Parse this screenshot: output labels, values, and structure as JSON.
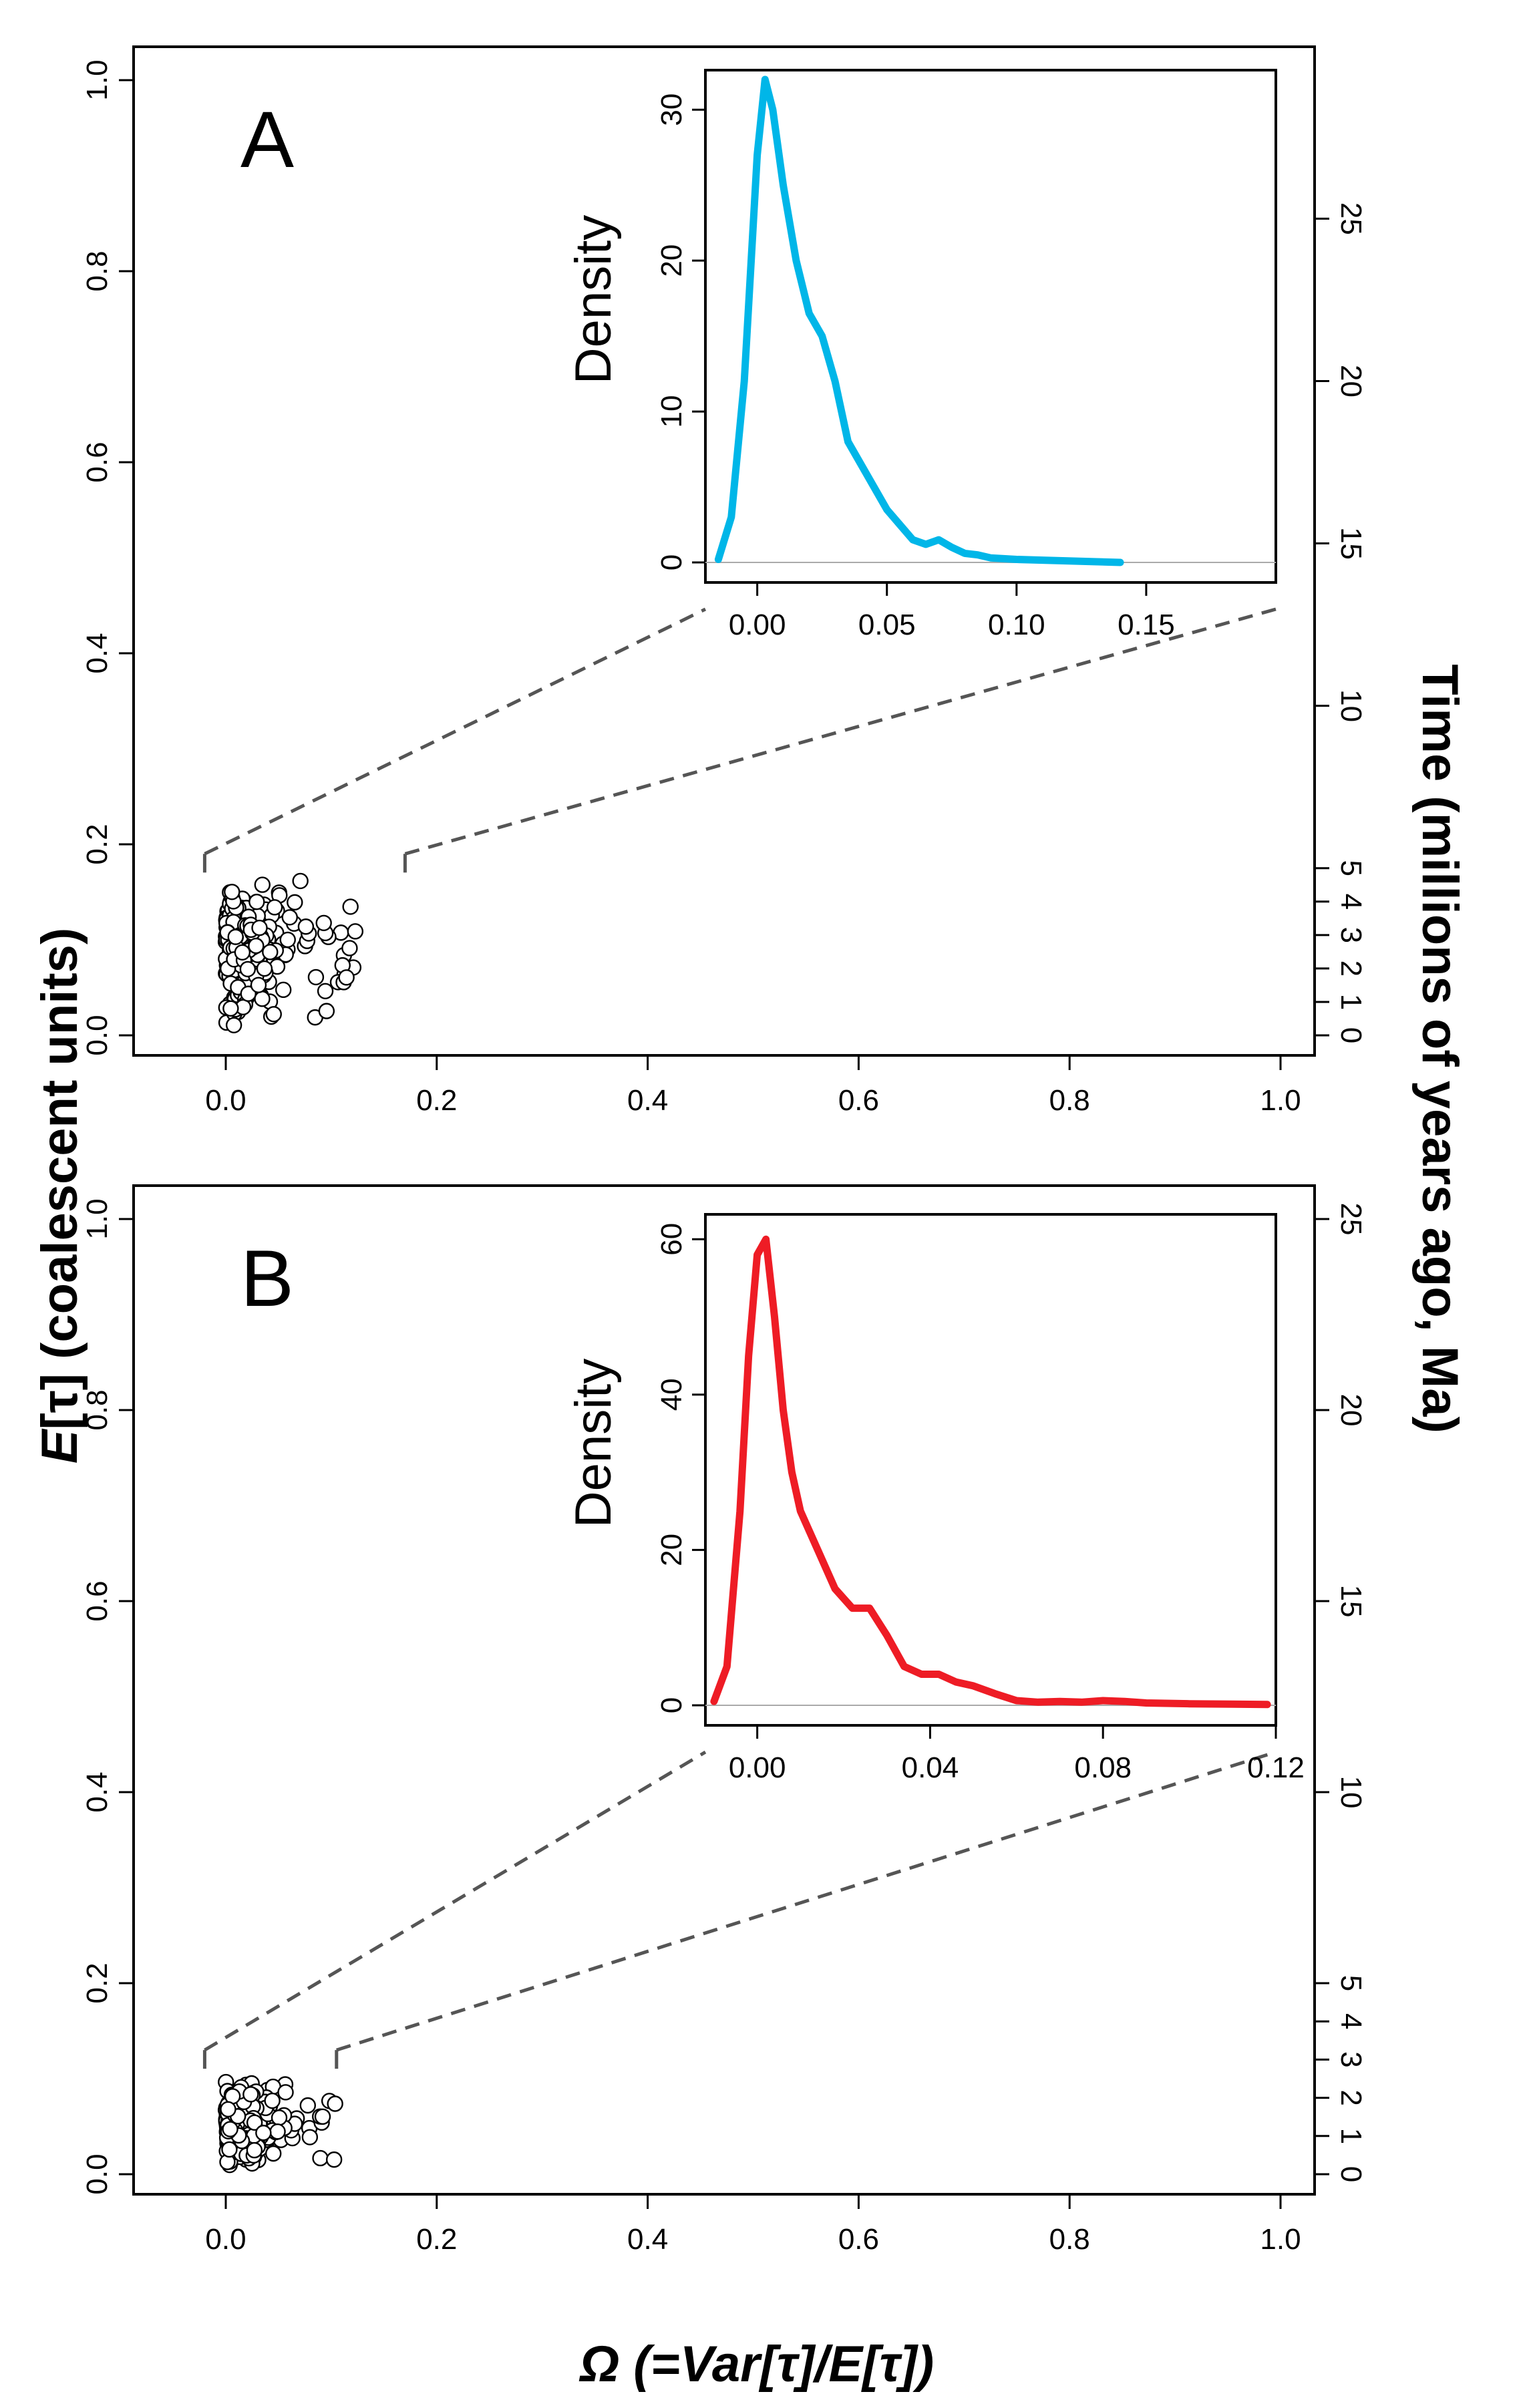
{
  "chart_data": [
    {
      "panel": "A",
      "type": "scatter",
      "panel_label": "A",
      "xlim": [
        0,
        1.0
      ],
      "ylim": [
        0,
        1.0
      ],
      "xticks": [
        "0.0",
        "0.2",
        "0.4",
        "0.6",
        "0.8",
        "1.0"
      ],
      "yticks": [
        "0.0",
        "0.2",
        "0.4",
        "0.6",
        "0.8",
        "1.0"
      ],
      "right_axis": {
        "label": "Time (millions of years ago, Ma)",
        "ticks": [
          {
            "label": "0",
            "y": 0.0
          },
          {
            "label": "1",
            "y": 0.035
          },
          {
            "label": "2",
            "y": 0.07
          },
          {
            "label": "3",
            "y": 0.105
          },
          {
            "label": "4",
            "y": 0.14
          },
          {
            "label": "5",
            "y": 0.175
          },
          {
            "label": "10",
            "y": 0.345
          },
          {
            "label": "15",
            "y": 0.515
          },
          {
            "label": "20",
            "y": 0.685
          },
          {
            "label": "25",
            "y": 0.855
          }
        ]
      },
      "scatter_summary": {
        "x_range": [
          0.0,
          0.13
        ],
        "y_range": [
          0.01,
          0.17
        ]
      },
      "zoom_region": {
        "x": [
          -0.02,
          0.17
        ],
        "y_top": 0.19
      },
      "inset": {
        "type": "line",
        "ylabel": "Density",
        "color": "#00b6e8",
        "xlim": [
          -0.02,
          0.2
        ],
        "ylim": [
          0,
          32
        ],
        "xticks": [
          "0.00",
          "0.05",
          "0.10",
          "0.15"
        ],
        "yticks": [
          "0",
          "10",
          "20",
          "30"
        ],
        "x": [
          -0.015,
          -0.01,
          -0.005,
          0.0,
          0.003,
          0.006,
          0.01,
          0.015,
          0.02,
          0.025,
          0.03,
          0.035,
          0.04,
          0.045,
          0.05,
          0.055,
          0.06,
          0.065,
          0.07,
          0.075,
          0.08,
          0.085,
          0.09,
          0.1,
          0.11,
          0.12,
          0.13,
          0.14
        ],
        "y": [
          0.2,
          3.0,
          12.0,
          27.0,
          32.0,
          30.0,
          25.0,
          20.0,
          16.5,
          15.0,
          12.0,
          8.0,
          6.5,
          5.0,
          3.5,
          2.5,
          1.5,
          1.2,
          1.5,
          1.0,
          0.6,
          0.5,
          0.3,
          0.2,
          0.15,
          0.1,
          0.05,
          0.0
        ]
      }
    },
    {
      "panel": "B",
      "type": "scatter",
      "panel_label": "B",
      "xlim": [
        0,
        1.0
      ],
      "ylim": [
        0,
        1.0
      ],
      "xticks": [
        "0.0",
        "0.2",
        "0.4",
        "0.6",
        "0.8",
        "1.0"
      ],
      "yticks": [
        "0.0",
        "0.2",
        "0.4",
        "0.6",
        "0.8",
        "1.0"
      ],
      "right_axis": {
        "label": "Time (millions of years ago, Ma)",
        "ticks": [
          {
            "label": "0",
            "y": 0.0
          },
          {
            "label": "1",
            "y": 0.04
          },
          {
            "label": "2",
            "y": 0.08
          },
          {
            "label": "3",
            "y": 0.12
          },
          {
            "label": "4",
            "y": 0.16
          },
          {
            "label": "5",
            "y": 0.2
          },
          {
            "label": "10",
            "y": 0.4
          },
          {
            "label": "15",
            "y": 0.6
          },
          {
            "label": "20",
            "y": 0.8
          },
          {
            "label": "25",
            "y": 1.0
          }
        ]
      },
      "scatter_summary": {
        "x_range": [
          0.0,
          0.11
        ],
        "y_range": [
          0.005,
          0.1
        ]
      },
      "zoom_region": {
        "x": [
          -0.02,
          0.105
        ],
        "y_top": 0.13
      },
      "inset": {
        "type": "line",
        "ylabel": "Density",
        "color": "#ee1c25",
        "xlim": [
          -0.012,
          0.12
        ],
        "ylim": [
          0,
          62
        ],
        "xticks": [
          "0.00",
          "0.04",
          "0.08",
          "0.12"
        ],
        "yticks": [
          "0",
          "20",
          "40",
          "60"
        ],
        "x": [
          -0.01,
          -0.007,
          -0.004,
          -0.002,
          0.0,
          0.002,
          0.004,
          0.006,
          0.008,
          0.01,
          0.014,
          0.018,
          0.022,
          0.026,
          0.03,
          0.034,
          0.038,
          0.042,
          0.046,
          0.05,
          0.055,
          0.06,
          0.065,
          0.07,
          0.075,
          0.08,
          0.085,
          0.09,
          0.1,
          0.11,
          0.118
        ],
        "y": [
          0.5,
          5.0,
          25.0,
          45.0,
          58.0,
          60.0,
          50.0,
          38.0,
          30.0,
          25.0,
          20.0,
          15.0,
          12.5,
          12.5,
          9.0,
          5.0,
          4.0,
          4.0,
          3.0,
          2.5,
          1.5,
          0.6,
          0.4,
          0.5,
          0.4,
          0.6,
          0.5,
          0.3,
          0.2,
          0.15,
          0.1
        ]
      }
    }
  ],
  "axis_titles": {
    "left_main": "[τ] (coalescent units)",
    "left_italic": "E",
    "right": "Time (millions of years ago, Ma)",
    "bottom": "Ω (=Var[τ]/E[τ])"
  },
  "colors": {
    "inset_a_line": "#00b6e8",
    "inset_b_line": "#ee1c25",
    "zoom_lines": "#555555"
  }
}
